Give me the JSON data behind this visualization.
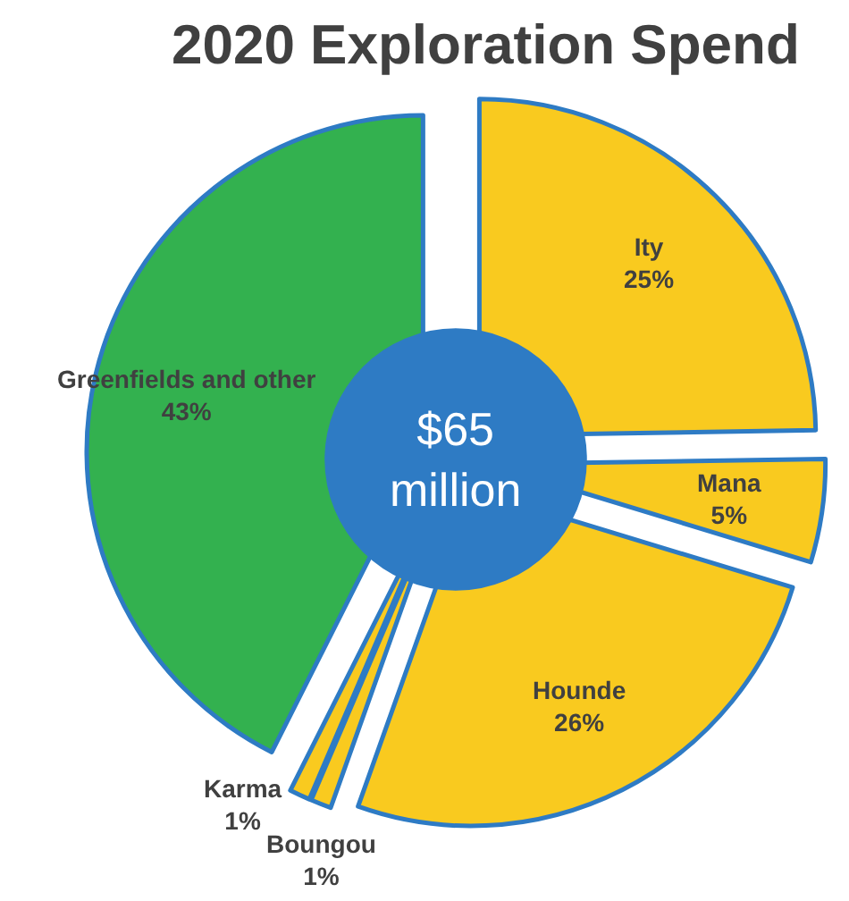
{
  "chart_data": {
    "type": "pie",
    "title": "2020 Exploration Spend",
    "categories": [
      "Ity",
      "Mana",
      "Hounde",
      "Boungou",
      "Karma",
      "Greenfields and other"
    ],
    "values": [
      25,
      5,
      26,
      1,
      1,
      43
    ],
    "value_labels": [
      "25%",
      "5%",
      "26%",
      "1%",
      "1%",
      "43%"
    ],
    "colors": [
      "#f9ca1f",
      "#f9ca1f",
      "#f9ca1f",
      "#f9ca1f",
      "#f9ca1f",
      "#33b14f"
    ],
    "annotations": [
      "$65\nmillion"
    ]
  }
}
